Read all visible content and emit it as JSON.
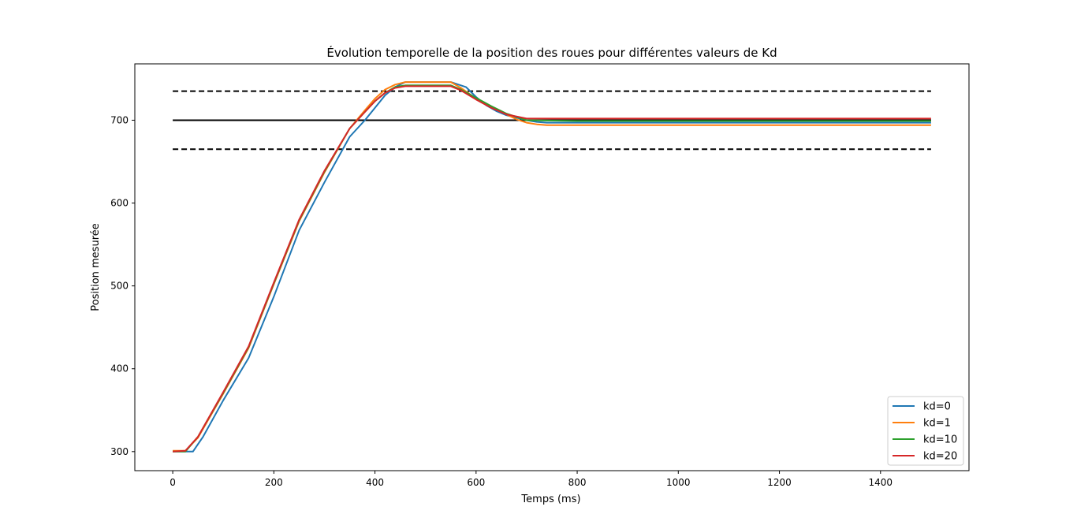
{
  "chart_data": {
    "type": "line",
    "title": "Évolution temporelle de la position des roues pour différentes valeurs de Kd",
    "xlabel": "Temps (ms)",
    "ylabel": "Position mesurée",
    "xlim": [
      -75,
      1575
    ],
    "ylim": [
      277,
      768
    ],
    "xticks": [
      0,
      200,
      400,
      600,
      800,
      1000,
      1200,
      1400
    ],
    "yticks": [
      300,
      400,
      500,
      600,
      700
    ],
    "grid": false,
    "legend_position": "lower right",
    "reference_lines": [
      {
        "y": 700,
        "x": [
          0,
          1500
        ],
        "style": "solid",
        "color": "#000000"
      },
      {
        "y": 735,
        "x": [
          0,
          1500
        ],
        "style": "dashed",
        "color": "#000000"
      },
      {
        "y": 665,
        "x": [
          0,
          1500
        ],
        "style": "dashed",
        "color": "#000000"
      }
    ],
    "series": [
      {
        "name": "kd=0",
        "color": "#1f77b4",
        "x": [
          0,
          40,
          60,
          100,
          150,
          200,
          250,
          300,
          350,
          380,
          400,
          420,
          440,
          460,
          550,
          560,
          580,
          600,
          620,
          640,
          660,
          680,
          700,
          720,
          740,
          800,
          1000,
          1200,
          1500
        ],
        "y": [
          300,
          300,
          318,
          362,
          413,
          487,
          567,
          625,
          680,
          700,
          715,
          730,
          740,
          746,
          746,
          744,
          740,
          728,
          718,
          711,
          706,
          703,
          700,
          698,
          697,
          697,
          697,
          697,
          697
        ]
      },
      {
        "name": "kd=1",
        "color": "#ff7f0e",
        "x": [
          0,
          25,
          50,
          100,
          150,
          200,
          250,
          300,
          350,
          380,
          400,
          420,
          440,
          460,
          550,
          570,
          600,
          630,
          660,
          680,
          700,
          720,
          740,
          800,
          1000,
          1200,
          1500
        ],
        "y": [
          301,
          301,
          317,
          370,
          425,
          502,
          578,
          637,
          690,
          712,
          726,
          737,
          743,
          746,
          746,
          739,
          726,
          716,
          707,
          701,
          697,
          695,
          694,
          694,
          694,
          694,
          694
        ]
      },
      {
        "name": "kd=10",
        "color": "#2ca02c",
        "x": [
          0,
          25,
          50,
          100,
          150,
          200,
          250,
          300,
          350,
          380,
          400,
          420,
          440,
          460,
          550,
          570,
          600,
          630,
          660,
          700,
          800,
          1000,
          1200,
          1500
        ],
        "y": [
          300,
          300,
          318,
          371,
          426,
          503,
          579,
          638,
          690,
          710,
          723,
          733,
          740,
          742,
          742,
          737,
          727,
          717,
          708,
          700,
          699,
          699,
          699,
          699
        ]
      },
      {
        "name": "kd=20",
        "color": "#d62728",
        "x": [
          0,
          25,
          50,
          100,
          150,
          200,
          250,
          300,
          350,
          380,
          400,
          420,
          440,
          460,
          550,
          570,
          600,
          630,
          660,
          700,
          800,
          1000,
          1200,
          1500
        ],
        "y": [
          300,
          301,
          318,
          372,
          427,
          504,
          580,
          639,
          690,
          710,
          723,
          733,
          739,
          741,
          741,
          736,
          725,
          715,
          707,
          702,
          702,
          702,
          702,
          702
        ]
      }
    ]
  }
}
